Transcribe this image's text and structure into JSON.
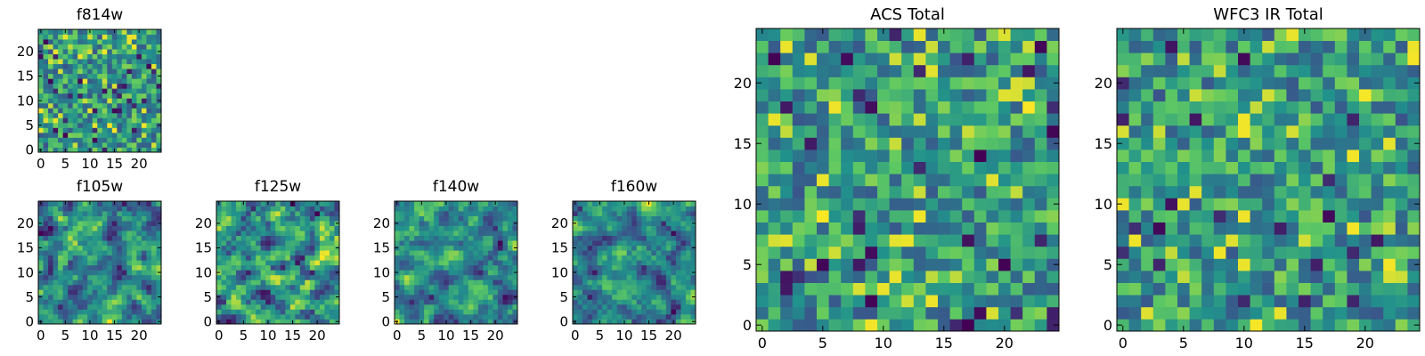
{
  "figure": {
    "colormap": "viridis",
    "colormap_stops": [
      "#440154",
      "#3b528b",
      "#21918c",
      "#5ec962",
      "#fde725"
    ]
  },
  "chart_data": [
    {
      "type": "heatmap",
      "title": "f814w",
      "xlabel": "",
      "ylabel": "",
      "grid_size": 25,
      "xlim": [
        0,
        24
      ],
      "ylim": [
        0,
        24
      ],
      "xticks": [
        0,
        5,
        10,
        15,
        20
      ],
      "yticks": [
        0,
        5,
        10,
        15,
        20
      ],
      "value_range": [
        0,
        1
      ],
      "seed": 814,
      "smooth": 0,
      "grid": false
    },
    {
      "type": "heatmap",
      "title": "f105w",
      "xlabel": "",
      "ylabel": "",
      "grid_size": 25,
      "xlim": [
        0,
        24
      ],
      "ylim": [
        0,
        24
      ],
      "xticks": [
        0,
        5,
        10,
        15,
        20
      ],
      "yticks": [
        0,
        5,
        10,
        15,
        20
      ],
      "value_range": [
        0,
        1
      ],
      "seed": 105,
      "smooth": 1,
      "grid": false
    },
    {
      "type": "heatmap",
      "title": "f125w",
      "xlabel": "",
      "ylabel": "",
      "grid_size": 25,
      "xlim": [
        0,
        24
      ],
      "ylim": [
        0,
        24
      ],
      "xticks": [
        0,
        5,
        10,
        15,
        20
      ],
      "yticks": [
        0,
        5,
        10,
        15,
        20
      ],
      "value_range": [
        0,
        1
      ],
      "seed": 125,
      "smooth": 1,
      "grid": false
    },
    {
      "type": "heatmap",
      "title": "f140w",
      "xlabel": "",
      "ylabel": "",
      "grid_size": 25,
      "xlim": [
        0,
        24
      ],
      "ylim": [
        0,
        24
      ],
      "xticks": [
        0,
        5,
        10,
        15,
        20
      ],
      "yticks": [
        0,
        5,
        10,
        15,
        20
      ],
      "value_range": [
        0,
        1
      ],
      "seed": 140,
      "smooth": 1,
      "grid": false
    },
    {
      "type": "heatmap",
      "title": "f160w",
      "xlabel": "",
      "ylabel": "",
      "grid_size": 25,
      "xlim": [
        0,
        24
      ],
      "ylim": [
        0,
        24
      ],
      "xticks": [
        0,
        5,
        10,
        15,
        20
      ],
      "yticks": [
        0,
        5,
        10,
        15,
        20
      ],
      "value_range": [
        0,
        1
      ],
      "seed": 160,
      "smooth": 1,
      "grid": false
    },
    {
      "type": "heatmap",
      "title": "ACS Total",
      "xlabel": "",
      "ylabel": "",
      "grid_size": 25,
      "xlim": [
        0,
        24
      ],
      "ylim": [
        0,
        24
      ],
      "xticks": [
        0,
        5,
        10,
        15,
        20
      ],
      "yticks": [
        0,
        5,
        10,
        15,
        20
      ],
      "value_range": [
        0,
        1
      ],
      "seed": 7001,
      "smooth": 0,
      "grid": false
    },
    {
      "type": "heatmap",
      "title": "WFC3 IR Total",
      "xlabel": "",
      "ylabel": "",
      "grid_size": 25,
      "xlim": [
        0,
        24
      ],
      "ylim": [
        0,
        24
      ],
      "xticks": [
        0,
        5,
        10,
        15,
        20
      ],
      "yticks": [
        0,
        5,
        10,
        15,
        20
      ],
      "value_range": [
        0,
        1
      ],
      "seed": 9003,
      "smooth": 0,
      "grid": false
    }
  ]
}
